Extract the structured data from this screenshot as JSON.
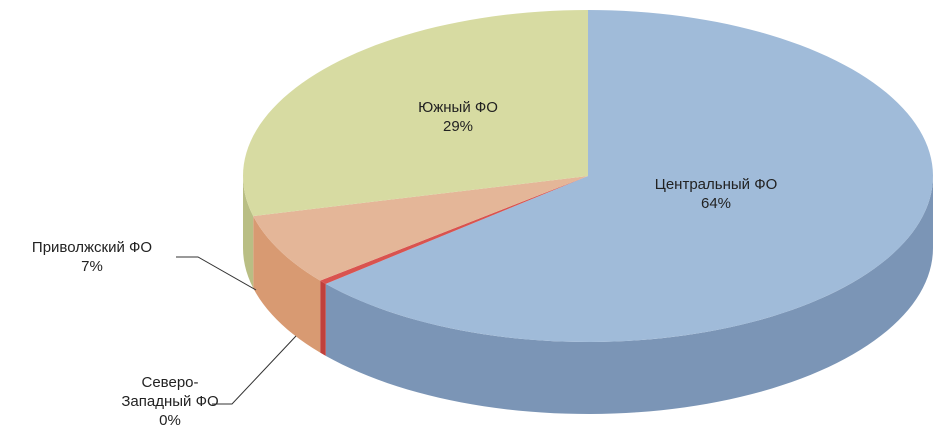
{
  "chart_data": {
    "type": "pie",
    "categories": [
      "Центральный ФО",
      "Северо-Западный ФО",
      "Приволжский ФО",
      "Южный ФО"
    ],
    "values": [
      64,
      0.4,
      7,
      29
    ],
    "value_labels": [
      "64%",
      "0%",
      "7%",
      "29%"
    ],
    "colors": [
      "#a0bbd9",
      "#d9534f",
      "#e4b698",
      "#d7dba2"
    ],
    "side_colors": [
      "#7b95b6",
      "#c0403c",
      "#d89a72",
      "#b9be84"
    ]
  }
}
